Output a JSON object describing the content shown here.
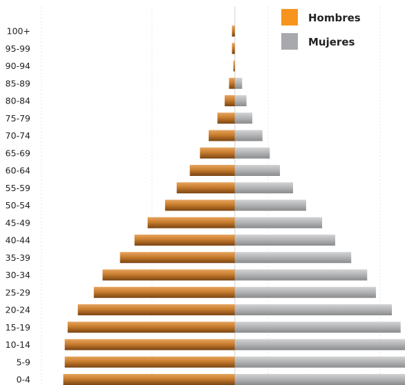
{
  "chart_data": {
    "type": "bar",
    "orientation": "horizontal-population-pyramid",
    "categories": [
      "100+",
      "95-99",
      "90-94",
      "85-89",
      "80-84",
      "75-79",
      "70-74",
      "65-69",
      "60-64",
      "55-59",
      "50-54",
      "45-49",
      "40-44",
      "35-39",
      "30-34",
      "25-29",
      "20-24",
      "15-19",
      "10-14",
      "5-9",
      "0-4"
    ],
    "series": [
      {
        "name": "Hombres",
        "color": "#f7941d",
        "values": [
          0.02,
          0.02,
          0.01,
          0.04,
          0.07,
          0.12,
          0.18,
          0.24,
          0.31,
          0.4,
          0.48,
          0.6,
          0.69,
          0.79,
          0.91,
          0.97,
          1.08,
          1.15,
          1.17,
          1.17,
          1.18
        ]
      },
      {
        "name": "Mujeres",
        "color": "#a7a9ac",
        "values": [
          0.0,
          0.0,
          0.0,
          0.05,
          0.08,
          0.12,
          0.19,
          0.24,
          0.31,
          0.4,
          0.49,
          0.6,
          0.69,
          0.8,
          0.91,
          0.97,
          1.08,
          1.14,
          1.17,
          1.17,
          1.18
        ]
      }
    ],
    "xlim": [
      -1.33,
      1.17
    ],
    "grid": "vertical",
    "legend_position": "top-right",
    "legend": [
      "Hombres",
      "Mujeres"
    ]
  }
}
